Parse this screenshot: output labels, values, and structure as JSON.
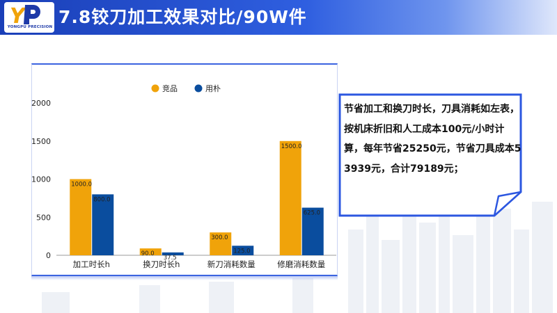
{
  "header": {
    "title": "7.8铰刀加工效果对比/90W件",
    "logo_text": "YONGPU PRECISION"
  },
  "note": {
    "text": "节省加工和换刀时长，刀具消耗如左表，按机床折旧和人工成本100元/小时计算，每年节省25250元，节省刀具成本53939元，合计79189元；"
  },
  "colors": {
    "header": "#2f5fe0",
    "series_a": "#f0a30a",
    "series_b": "#0a4d9e",
    "note_border": "#2c57e0"
  },
  "chart_data": {
    "type": "bar",
    "categories": [
      "加工时长h",
      "换刀时长h",
      "新刀消耗数量",
      "修磨消耗数量"
    ],
    "series": [
      {
        "name": "竞品",
        "values": [
          1000.0,
          90.0,
          300.0,
          1500.0
        ],
        "labels": [
          "1000.0",
          "90.0",
          "300.0",
          "1500.0"
        ]
      },
      {
        "name": "用朴",
        "values": [
          800.0,
          37.5,
          125.0,
          625.0
        ],
        "labels": [
          "800.0",
          "37.5",
          "125.0",
          "625.0"
        ]
      }
    ],
    "yticks": [
      "0",
      "500",
      "1000",
      "1500",
      "2000"
    ],
    "ylim": [
      0,
      2000
    ],
    "legend_position": "top-center",
    "grid": false
  }
}
